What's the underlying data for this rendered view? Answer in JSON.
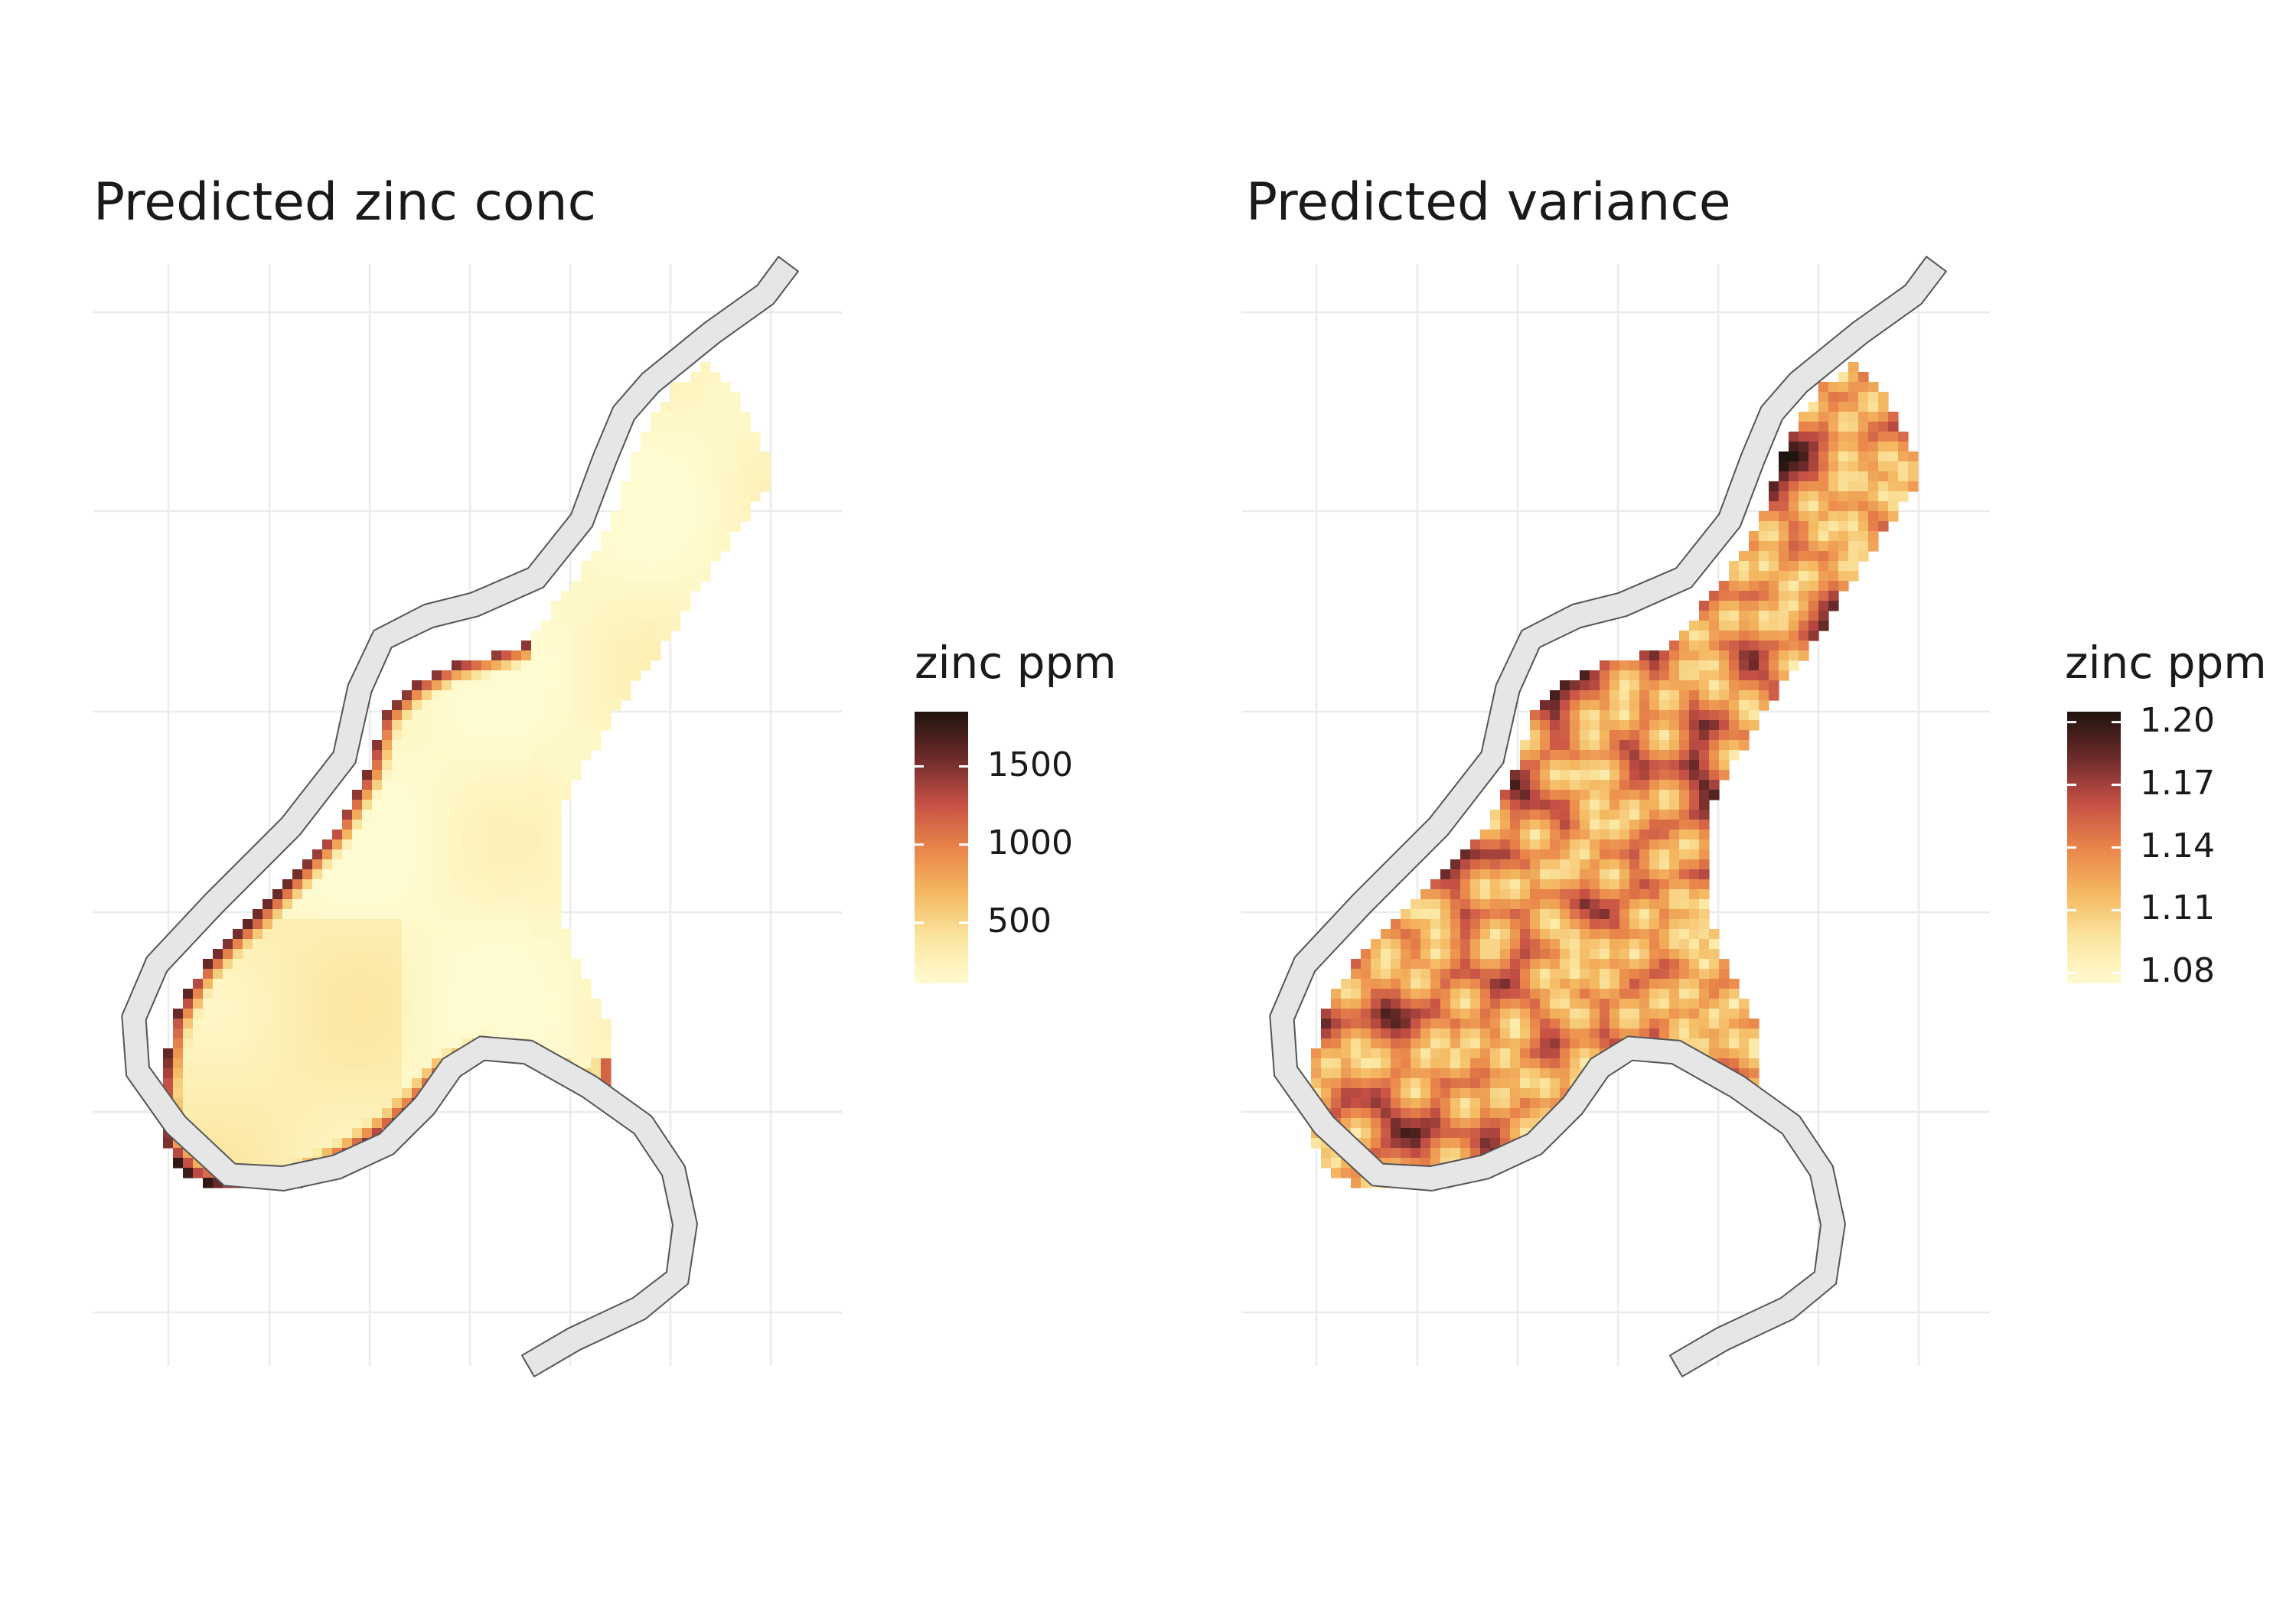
{
  "panels": [
    {
      "title": "Predicted zinc conc",
      "legend": {
        "title": "zinc ppm",
        "min": 113,
        "max": 1850,
        "ticks": [
          {
            "value": 500,
            "label": "500"
          },
          {
            "value": 1000,
            "label": "1000"
          },
          {
            "value": 1500,
            "label": "1500"
          }
        ],
        "colors": [
          "#fffbd0",
          "#fbe6a0",
          "#f4b860",
          "#e9844a",
          "#c44f45",
          "#6b2a2a",
          "#1f140e"
        ]
      }
    },
    {
      "title": "Predicted variance",
      "legend": {
        "title": "zinc ppm",
        "min": 1.075,
        "max": 1.205,
        "ticks": [
          {
            "value": 1.08,
            "label": "1.08"
          },
          {
            "value": 1.11,
            "label": "1.11"
          },
          {
            "value": 1.14,
            "label": "1.14"
          },
          {
            "value": 1.17,
            "label": "1.17"
          },
          {
            "value": 1.2,
            "label": "1.20"
          }
        ],
        "colors": [
          "#fffbd0",
          "#fbe6a0",
          "#f4b860",
          "#e9844a",
          "#c44f45",
          "#6b2a2a",
          "#1f140e"
        ]
      }
    }
  ],
  "colors": {
    "river_fill": "#e6e6e6",
    "river_stroke": "#555555",
    "grid": "#ebebeb"
  }
}
